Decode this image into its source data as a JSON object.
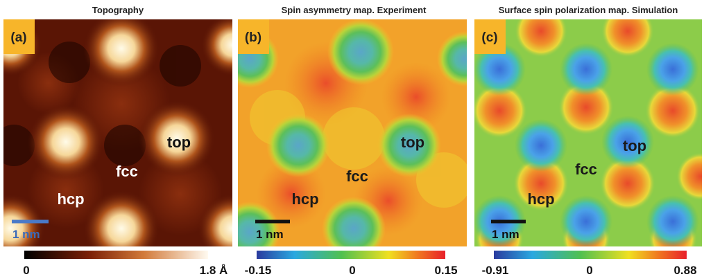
{
  "panels": [
    {
      "title": "Topography",
      "label": "(a)",
      "sites": {
        "top": "top",
        "fcc": "fcc",
        "hcp": "hcp"
      },
      "scale_bar": "1 nm",
      "colorbar": [
        "0",
        "1.8 Å"
      ]
    },
    {
      "title": "Spin asymmetry map. Experiment",
      "label": "(b)",
      "sites": {
        "top": "top",
        "fcc": "fcc",
        "hcp": "hcp"
      },
      "scale_bar": "1 nm",
      "colorbar": [
        "-0.15",
        "0",
        "0.15"
      ]
    },
    {
      "title": "Surface spin polarization map. Simulation",
      "label": "(c)",
      "sites": {
        "top": "top",
        "fcc": "fcc",
        "hcp": "hcp"
      },
      "scale_bar": "1 nm",
      "colorbar": [
        "-0.91",
        "0",
        "0.88"
      ]
    }
  ]
}
